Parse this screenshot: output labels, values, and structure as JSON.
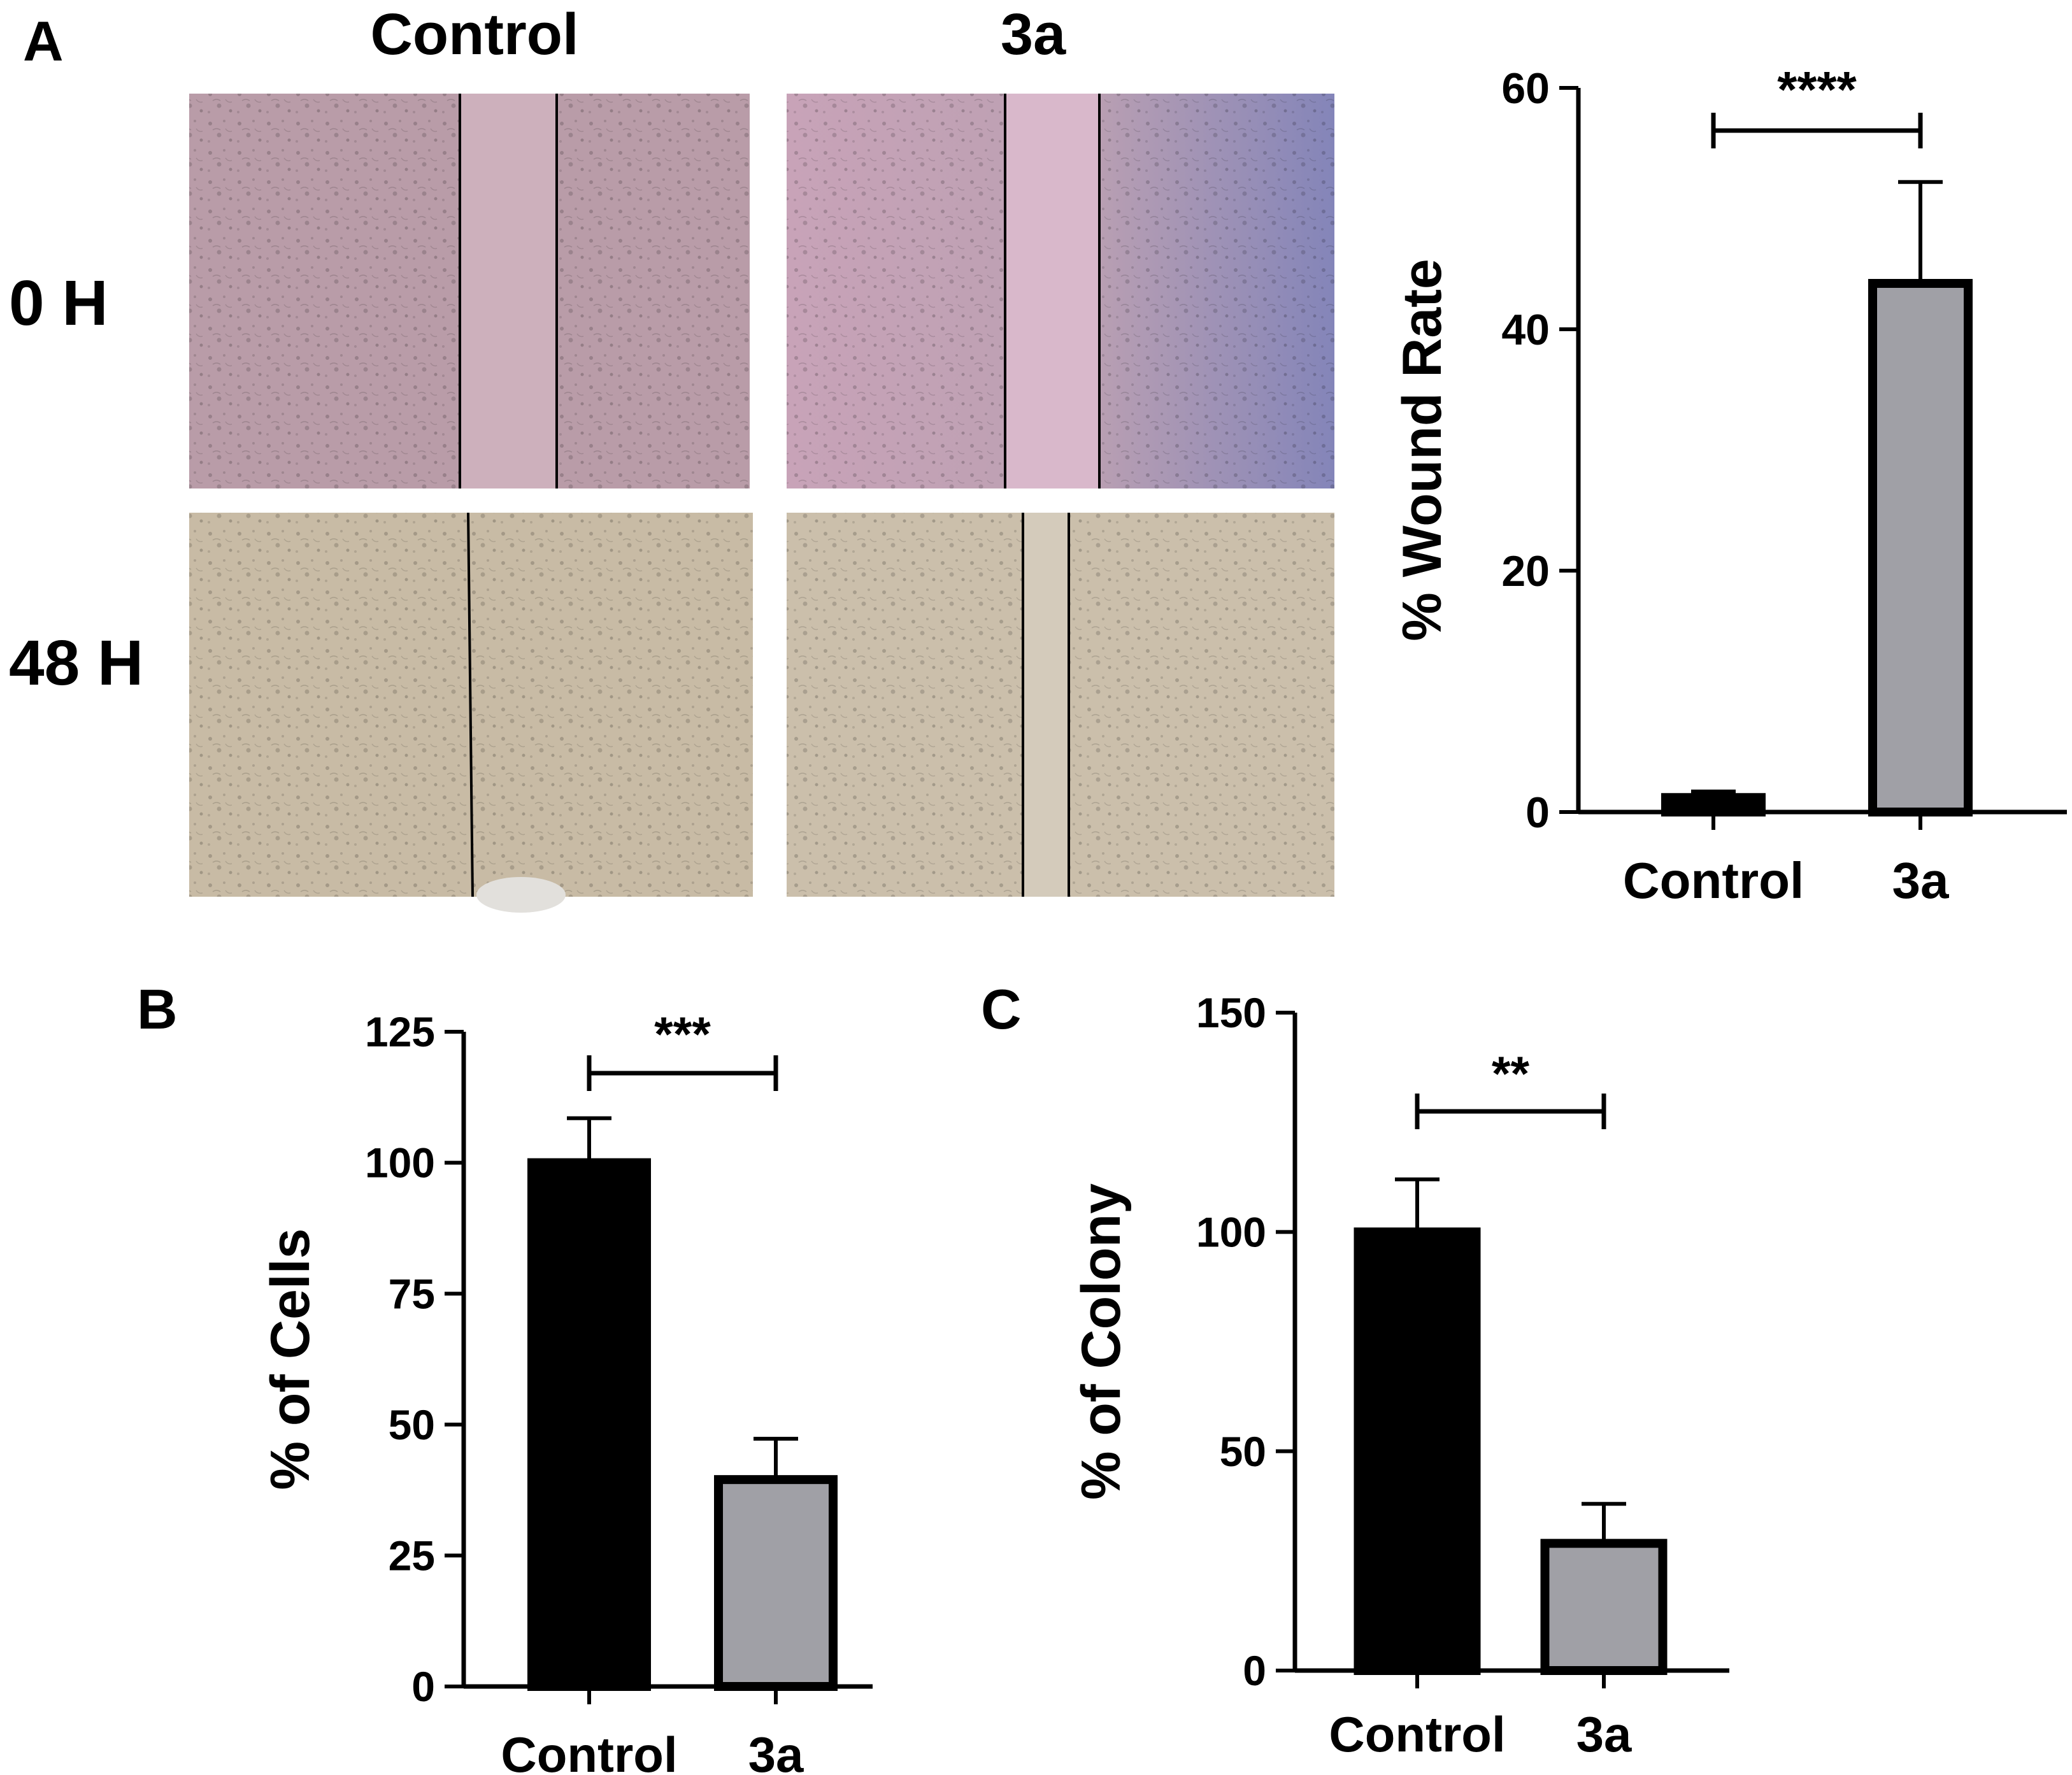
{
  "panel_a": {
    "label": "A",
    "col_labels": [
      "Control",
      "3a"
    ],
    "row_labels": [
      "0 H",
      "48 H"
    ],
    "micrographs": [
      {
        "name": "micrograph-control-0h",
        "tint": "#b89aa4",
        "lines": 2
      },
      {
        "name": "micrograph-3a-0h",
        "tint": "#c3a6b6",
        "lines": 2,
        "gradient_to": "#8e8fbf"
      },
      {
        "name": "micrograph-control-48h",
        "tint": "#c9bca6",
        "lines": 1
      },
      {
        "name": "micrograph-3a-48h",
        "tint": "#cbc0ad",
        "lines": 2
      }
    ]
  },
  "panel_b": {
    "label": "B"
  },
  "panel_c": {
    "label": "C"
  },
  "colors": {
    "control_bar": "#000000",
    "treatment_bar": "#a0a0a6",
    "axis": "#000000"
  },
  "chart_data": [
    {
      "id": "chart-a",
      "type": "bar",
      "title": "",
      "xlabel": "",
      "ylabel": "% Wound Rate",
      "categories": [
        "Control",
        "3a"
      ],
      "values": [
        1.2,
        43.8
      ],
      "errors": [
        0.5,
        8.4
      ],
      "ylim": [
        0,
        60
      ],
      "yticks": [
        0,
        20,
        40,
        60
      ],
      "significance": "****"
    },
    {
      "id": "chart-b",
      "type": "bar",
      "title": "",
      "xlabel": "",
      "ylabel": "% of Cells",
      "categories": [
        "Control",
        "3a"
      ],
      "values": [
        100,
        39.5
      ],
      "errors": [
        8.5,
        7.8
      ],
      "ylim": [
        0,
        125
      ],
      "yticks": [
        0,
        25,
        50,
        75,
        100,
        125
      ],
      "significance": "***"
    },
    {
      "id": "chart-c",
      "type": "bar",
      "title": "",
      "xlabel": "",
      "ylabel": "% of Colony",
      "categories": [
        "Control",
        "3a"
      ],
      "values": [
        100,
        29
      ],
      "errors": [
        12,
        9
      ],
      "ylim": [
        0,
        150
      ],
      "yticks": [
        0,
        50,
        100,
        150
      ],
      "significance": "**"
    }
  ]
}
